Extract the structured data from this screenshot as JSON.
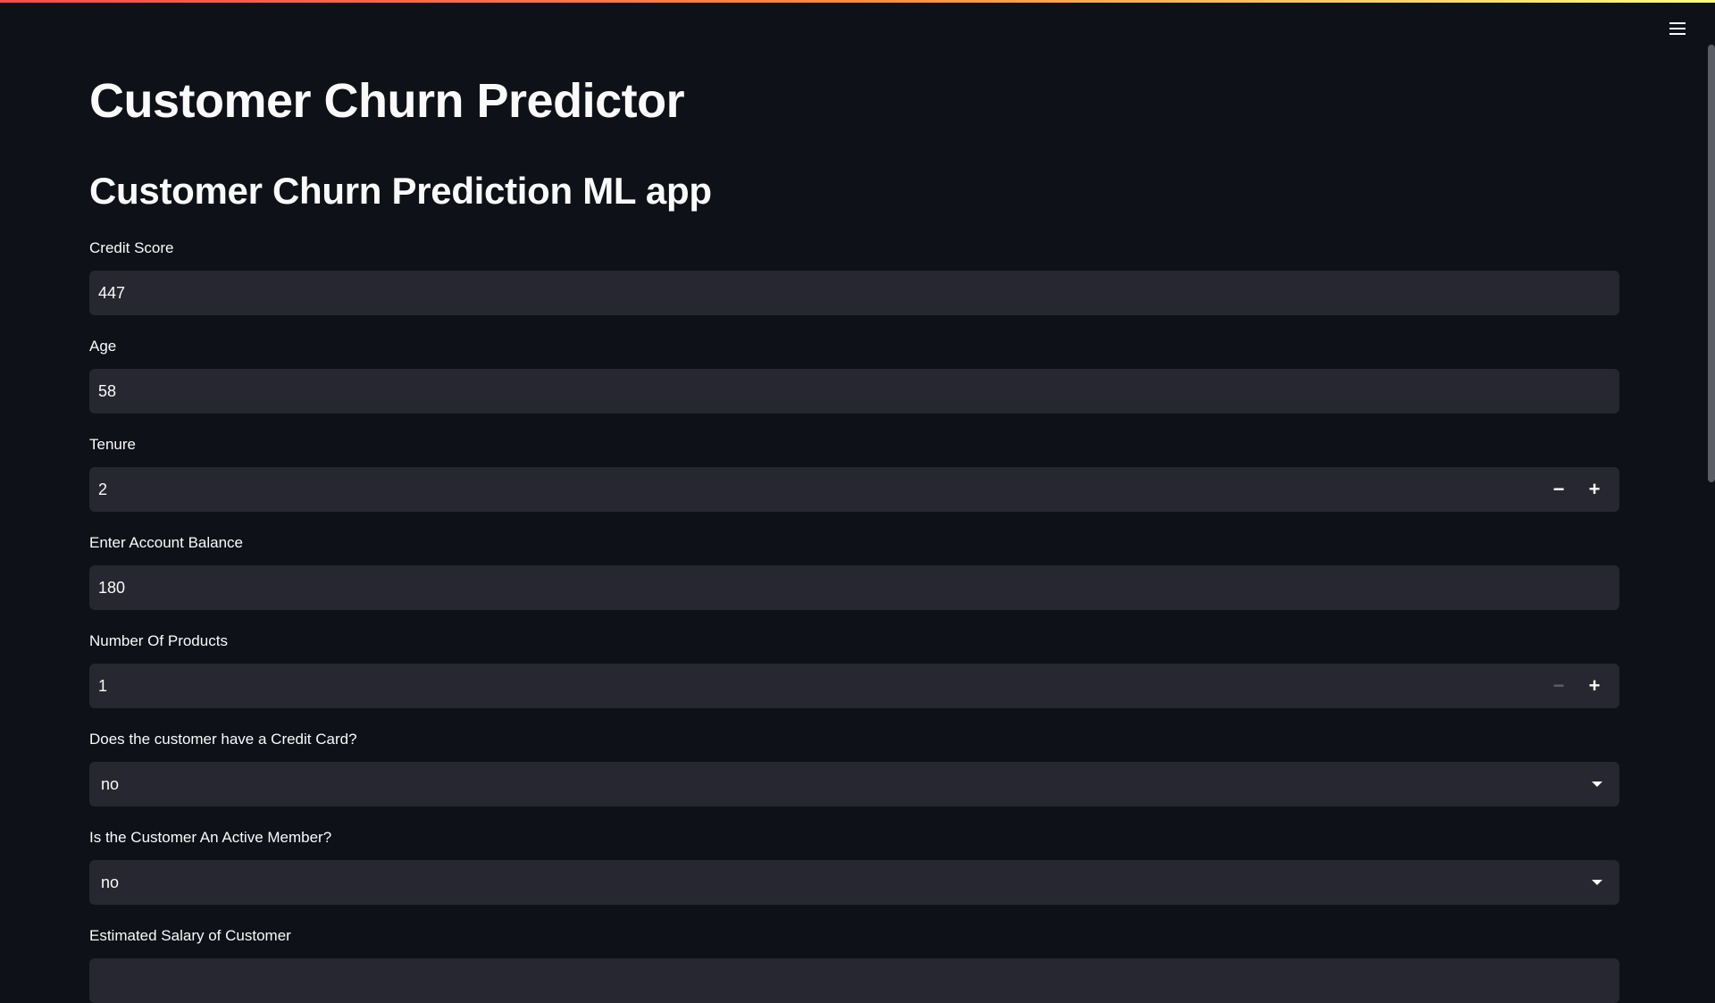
{
  "app": {
    "title": "Customer Churn Predictor",
    "subtitle": "Customer Churn Prediction ML app"
  },
  "menu": {
    "icon": "hamburger-menu-icon"
  },
  "fields": {
    "credit_score": {
      "label": "Credit Score",
      "value": "447"
    },
    "age": {
      "label": "Age",
      "value": "58"
    },
    "tenure": {
      "label": "Tenure",
      "value": "2",
      "decrement": "−",
      "increment": "+"
    },
    "balance": {
      "label": "Enter Account Balance",
      "value": "180"
    },
    "num_products": {
      "label": "Number Of Products",
      "value": "1",
      "decrement": "−",
      "increment": "+"
    },
    "has_credit_card": {
      "label": "Does the customer have a Credit Card?",
      "value": "no"
    },
    "active_member": {
      "label": "Is the Customer An Active Member?",
      "value": "no"
    },
    "salary": {
      "label": "Estimated Salary of Customer"
    }
  },
  "colors": {
    "background": "#0e1117",
    "input_background": "#262730",
    "text": "#fafafa",
    "accent_gradient_start": "#ff4b4b",
    "accent_gradient_end": "#fffd80"
  }
}
